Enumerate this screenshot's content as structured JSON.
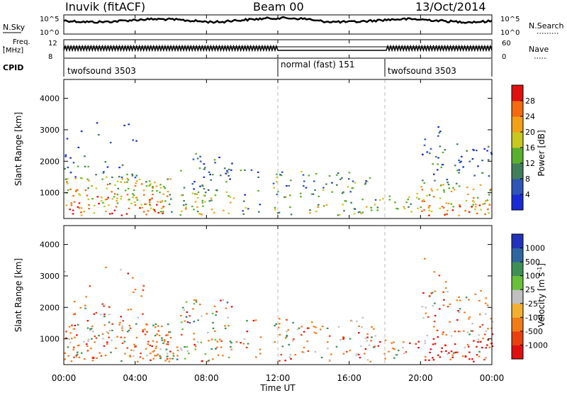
{
  "header": {
    "station": "Inuvik (fitACF)",
    "beam": "Beam 00",
    "date": "13/Oct/2014"
  },
  "strip": {
    "nsky_label": "N.Sky",
    "nsky_ticks": [
      "10^5",
      "10^0"
    ],
    "nsearch_label": "N.Search",
    "nsearch_ticks": [
      "10^5",
      "10^0"
    ],
    "freq_label_1": "Freq.",
    "freq_label_2": "[MHz]",
    "freq_ticks": [
      "12",
      "8"
    ],
    "nave_label": "Nave",
    "nave_ticks": [
      "60",
      "0"
    ],
    "cpid_label": "CPID",
    "cpid_segments": [
      {
        "label": "twofsound 3503",
        "start_h": 0,
        "end_h": 12
      },
      {
        "label": "normal (fast) 151",
        "start_h": 12,
        "end_h": 18
      },
      {
        "label": "twofsound 3503",
        "start_h": 18,
        "end_h": 24
      }
    ]
  },
  "axes": {
    "ylabel": "Slant Range [km]",
    "xlabel": "Time UT",
    "x_ticks": [
      "00:00",
      "04:00",
      "08:00",
      "12:00",
      "16:00",
      "20:00",
      "00:00"
    ],
    "y_ticks": [
      "1000",
      "2000",
      "3000",
      "4000"
    ]
  },
  "chart_data": [
    {
      "type": "heatmap",
      "name": "power",
      "x_range_hours": [
        0,
        24
      ],
      "y_range_km": [
        180,
        4600
      ],
      "y_ticks": [
        1000,
        2000,
        3000,
        4000
      ],
      "colorbar": {
        "label": "Power [dB]",
        "ticks": [
          4,
          8,
          12,
          16,
          20,
          24,
          28
        ],
        "range": [
          0,
          32
        ],
        "colors": [
          "#1a2bd6",
          "#2e55b8",
          "#3f7f5a",
          "#58b02e",
          "#c8c820",
          "#f2a018",
          "#f36a10",
          "#e01010"
        ]
      }
    },
    {
      "type": "heatmap",
      "name": "velocity",
      "x_range_hours": [
        0,
        24
      ],
      "y_range_km": [
        180,
        4600
      ],
      "y_ticks": [
        1000,
        2000,
        3000,
        4000
      ],
      "colorbar": {
        "label": "Velocity [m s^-1]",
        "ticks": [
          "1000",
          "500",
          "100",
          "25",
          "-25",
          "-100",
          "-500",
          "-1000"
        ],
        "colors": [
          "#2233bb",
          "#2f66a0",
          "#3f8f55",
          "#68c03a",
          "#c0c0c0",
          "#f3b030",
          "#f07c18",
          "#e84010",
          "#e01010"
        ]
      }
    }
  ]
}
